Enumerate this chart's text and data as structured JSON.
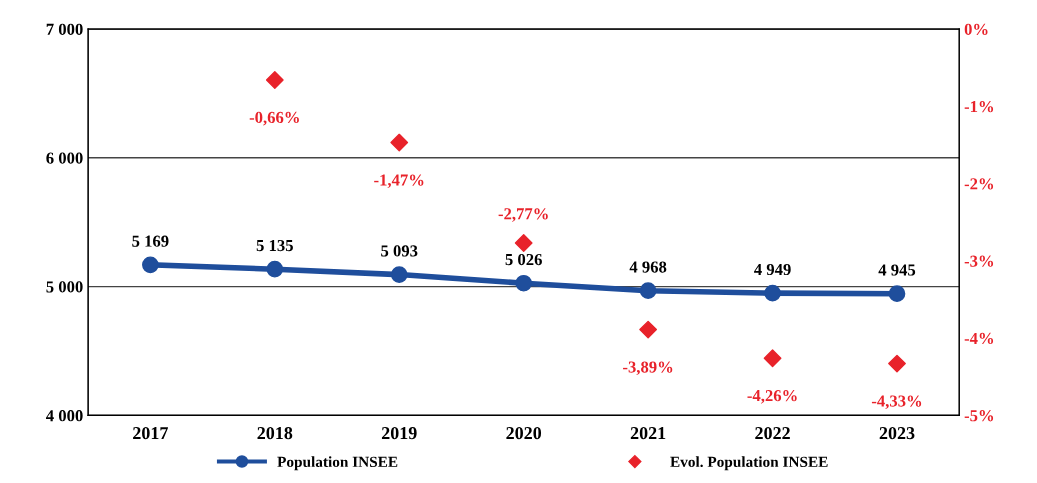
{
  "chart_data": {
    "type": "line",
    "categories": [
      "2017",
      "2018",
      "2019",
      "2020",
      "2021",
      "2022",
      "2023"
    ],
    "series": [
      {
        "name": "Population INSEE",
        "color": "#1f4e9c",
        "marker": "circle",
        "values": [
          5169,
          5135,
          5093,
          5026,
          4968,
          4949,
          4945
        ],
        "value_labels": [
          "5 169",
          "5 135",
          "5 093",
          "5 026",
          "4 968",
          "4 949",
          "4 945"
        ]
      },
      {
        "name": "Evol. Population INSEE",
        "type": "scatter",
        "axis": "y2",
        "color": "#e8222a",
        "marker": "diamond",
        "values": [
          null,
          -0.66,
          -1.47,
          -2.77,
          -3.89,
          -4.26,
          -4.33
        ],
        "value_labels": [
          null,
          "-0,66%",
          "-1,47%",
          "-2,77%",
          "-3,89%",
          "-4,26%",
          "-4,33%"
        ]
      }
    ],
    "ylim": [
      4000,
      7000
    ],
    "yticks": [
      {
        "value": 4000,
        "label": "4 000"
      },
      {
        "value": 5000,
        "label": "5 000"
      },
      {
        "value": 6000,
        "label": "6 000"
      },
      {
        "value": 7000,
        "label": "7 000"
      }
    ],
    "y2lim": [
      -5,
      0
    ],
    "y2ticks": [
      {
        "value": -5,
        "label": "-5%"
      },
      {
        "value": -4,
        "label": "-4%"
      },
      {
        "value": -3,
        "label": "-3%"
      },
      {
        "value": -2,
        "label": "-2%"
      },
      {
        "value": -1,
        "label": "-1%"
      },
      {
        "value": 0,
        "label": "0%"
      }
    ],
    "grid": "y",
    "legend": "bottom"
  }
}
